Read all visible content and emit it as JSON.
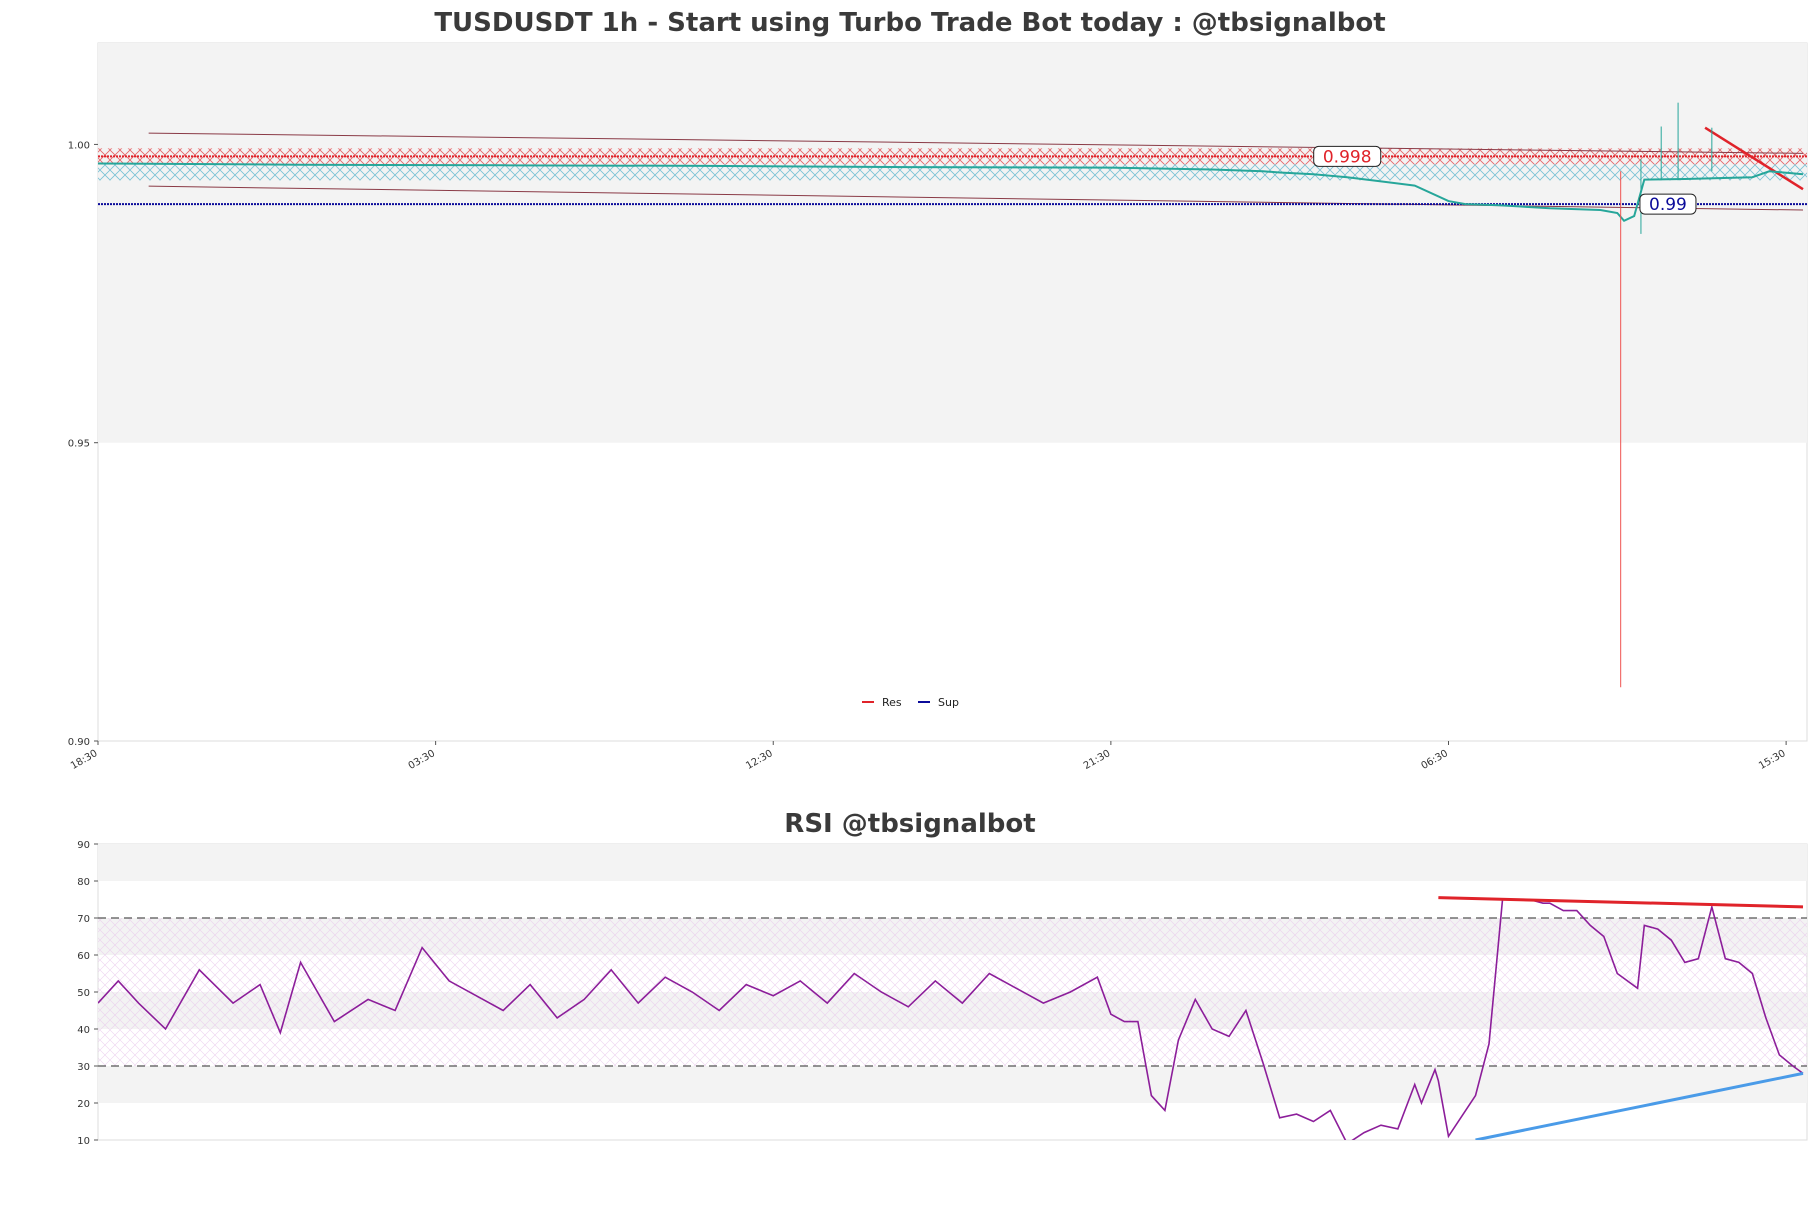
{
  "colors": {
    "resistance": "#e0232a",
    "support": "#0b0b9a",
    "rsi_line": "#8c1e9a",
    "rsi_resistance": "#e0232a",
    "rsi_support": "#4a9be8",
    "candle_up": "#26a69a",
    "candle_down": "#ef5350",
    "band": "#f3f3f3",
    "trend": "#8a3a46"
  },
  "chart_data": [
    {
      "type": "candlestick",
      "title": "TUSDUSDT 1h - Start using Turbo Trade Bot today : @tbsignalbot",
      "ylim": [
        0.9,
        1.017
      ],
      "yticks": [
        "1.00",
        "0.95",
        "0.90"
      ],
      "ytick_values": [
        1.0,
        0.95,
        0.9
      ],
      "xticks": [
        "18:30",
        "03:30",
        "12:30",
        "21:30",
        "06:30",
        "15:30"
      ],
      "x_count": 506,
      "xtick_index": [
        0,
        100,
        200,
        300,
        400,
        500
      ],
      "legend": [
        {
          "label": "Res",
          "color": "#e0232a"
        },
        {
          "label": "Sup",
          "color": "#0b0b9a"
        }
      ],
      "legend_position": "lower-center",
      "resistance_level": 0.998,
      "support_level": 0.99,
      "level_labels": [
        {
          "text": "0.998",
          "value": 0.998,
          "x_index": 370,
          "color": "#e0232a"
        },
        {
          "text": "0.99",
          "value": 0.99,
          "x_index": 465,
          "color": "#0b0b9a"
        }
      ],
      "shaded_band": [
        0.95,
        1.017
      ],
      "price_path": [
        [
          0,
          0.9968
        ],
        [
          60,
          0.9966
        ],
        [
          120,
          0.9965
        ],
        [
          180,
          0.9964
        ],
        [
          240,
          0.9962
        ],
        [
          300,
          0.9961
        ],
        [
          330,
          0.9958
        ],
        [
          345,
          0.9955
        ],
        [
          350,
          0.9953
        ],
        [
          360,
          0.995
        ],
        [
          370,
          0.9945
        ],
        [
          380,
          0.9938
        ],
        [
          390,
          0.9931
        ],
        [
          400,
          0.9905
        ],
        [
          405,
          0.99
        ],
        [
          415,
          0.9898
        ],
        [
          430,
          0.9893
        ],
        [
          445,
          0.989
        ],
        [
          450,
          0.9885
        ],
        [
          452,
          0.9872
        ],
        [
          455,
          0.988
        ],
        [
          458,
          0.9941
        ],
        [
          470,
          0.9942
        ],
        [
          490,
          0.9945
        ],
        [
          495,
          0.9955
        ],
        [
          505,
          0.995
        ]
      ],
      "wicks": [
        {
          "x_index": 451,
          "high": 0.9955,
          "low": 0.909
        },
        {
          "x_index": 457,
          "high": 0.9975,
          "low": 0.985
        },
        {
          "x_index": 463,
          "high": 1.003,
          "low": 0.994
        },
        {
          "x_index": 468,
          "high": 1.007,
          "low": 0.994
        },
        {
          "x_index": 478,
          "high": 1.0028,
          "low": 0.9955
        }
      ],
      "trendlines": [
        {
          "from": [
            15,
            1.0019
          ],
          "to": [
            505,
            0.9985
          ]
        },
        {
          "from": [
            15,
            0.993
          ],
          "to": [
            505,
            0.989
          ]
        },
        {
          "from": [
            476,
            1.0028
          ],
          "to": [
            505,
            0.9925
          ]
        }
      ]
    },
    {
      "type": "line",
      "title": "RSI @tbsignalbot",
      "ylim": [
        10,
        90
      ],
      "yticks": [
        "90",
        "80",
        "70",
        "60",
        "50",
        "40",
        "30",
        "20",
        "10"
      ],
      "ytick_values": [
        90,
        80,
        70,
        60,
        50,
        40,
        30,
        20,
        10
      ],
      "hlines": [
        70,
        30
      ],
      "bands": [
        [
          80,
          90
        ],
        [
          60,
          70
        ],
        [
          40,
          50
        ],
        [
          20,
          30
        ]
      ],
      "hatch_zone": [
        30,
        70
      ],
      "resistance_line": {
        "from": [
          397,
          75.5
        ],
        "to": [
          505,
          73
        ]
      },
      "support_line": {
        "from": [
          408,
          10
        ],
        "to": [
          505,
          28
        ]
      },
      "x": [
        0,
        6,
        12,
        20,
        30,
        40,
        48,
        54,
        60,
        70,
        80,
        88,
        96,
        104,
        112,
        120,
        128,
        136,
        144,
        152,
        160,
        168,
        176,
        184,
        192,
        200,
        208,
        216,
        224,
        232,
        240,
        248,
        256,
        264,
        272,
        280,
        288,
        296,
        300,
        304,
        308,
        312,
        316,
        320,
        325,
        330,
        335,
        340,
        345,
        350,
        355,
        360,
        365,
        370,
        375,
        380,
        385,
        390,
        392,
        396,
        397,
        400,
        408,
        412,
        416,
        420,
        424,
        428,
        430,
        434,
        438,
        442,
        446,
        450,
        456,
        458,
        462,
        466,
        470,
        474,
        478,
        482,
        486,
        490,
        494,
        498,
        502,
        505
      ],
      "values": [
        47,
        53,
        47,
        40,
        56,
        47,
        52,
        39,
        58,
        42,
        48,
        45,
        62,
        53,
        49,
        45,
        52,
        43,
        48,
        56,
        47,
        54,
        50,
        45,
        52,
        49,
        53,
        47,
        55,
        50,
        46,
        53,
        47,
        55,
        51,
        47,
        50,
        54,
        44,
        42,
        42,
        22,
        18,
        37,
        48,
        40,
        38,
        45,
        31,
        16,
        17,
        15,
        18,
        9,
        12,
        14,
        13,
        25,
        20,
        29,
        26,
        11,
        22,
        36,
        75,
        75,
        75,
        74,
        74,
        72,
        72,
        68,
        65,
        55,
        51,
        68,
        67,
        64,
        58,
        59,
        73,
        59,
        58,
        55,
        43,
        33,
        30,
        28
      ]
    }
  ]
}
